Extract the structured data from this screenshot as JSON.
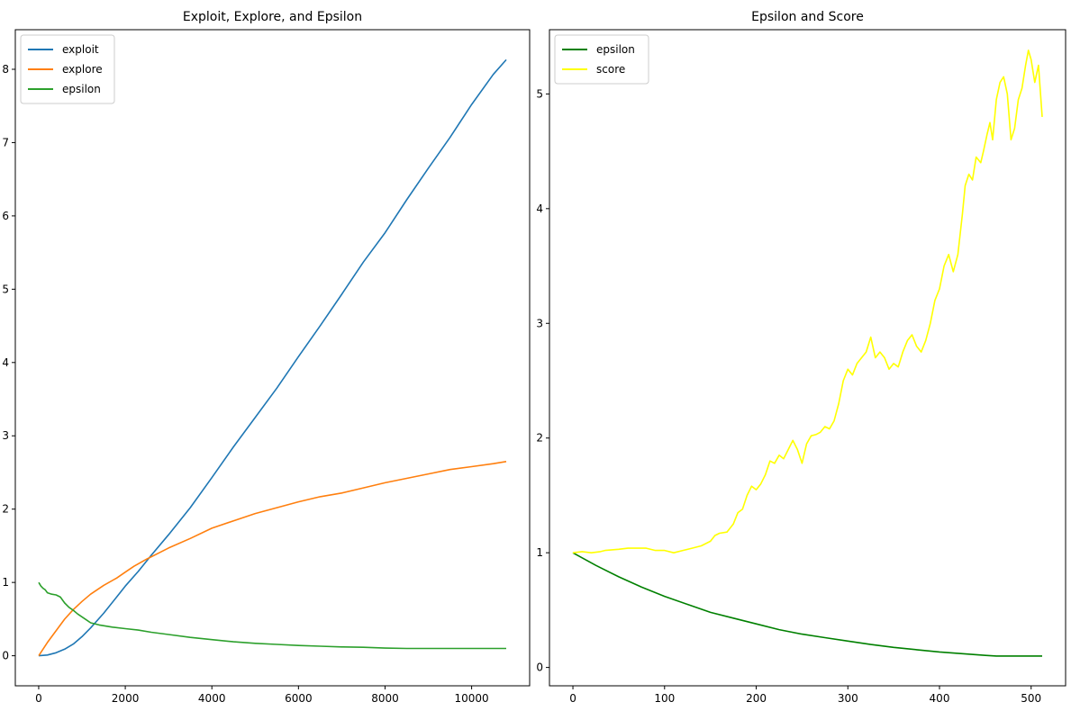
{
  "chart_data": [
    {
      "type": "line",
      "title": "Exploit, Explore, and Epsilon",
      "xlabel": "",
      "ylabel": "",
      "xlim": [
        -540,
        11340
      ],
      "ylim": [
        -0.41,
        8.54
      ],
      "xticks": [
        0,
        2000,
        4000,
        6000,
        8000,
        10000
      ],
      "yticks": [
        0,
        1,
        2,
        3,
        4,
        5,
        6,
        7,
        8
      ],
      "grid": false,
      "legend": "top-left",
      "series": [
        {
          "name": "exploit",
          "color": "#1f77b4",
          "points": [
            [
              0,
              0
            ],
            [
              200,
              0.01
            ],
            [
              400,
              0.04
            ],
            [
              600,
              0.09
            ],
            [
              800,
              0.16
            ],
            [
              1000,
              0.26
            ],
            [
              1200,
              0.38
            ],
            [
              1500,
              0.58
            ],
            [
              1800,
              0.8
            ],
            [
              2000,
              0.95
            ],
            [
              2300,
              1.15
            ],
            [
              2600,
              1.37
            ],
            [
              3000,
              1.65
            ],
            [
              3500,
              2.02
            ],
            [
              4000,
              2.43
            ],
            [
              4500,
              2.85
            ],
            [
              5000,
              3.25
            ],
            [
              5500,
              3.65
            ],
            [
              6000,
              4.08
            ],
            [
              6500,
              4.5
            ],
            [
              7000,
              4.93
            ],
            [
              7500,
              5.37
            ],
            [
              8000,
              5.77
            ],
            [
              8500,
              6.22
            ],
            [
              9000,
              6.65
            ],
            [
              9500,
              7.07
            ],
            [
              10000,
              7.52
            ],
            [
              10500,
              7.93
            ],
            [
              10800,
              8.13
            ]
          ]
        },
        {
          "name": "explore",
          "color": "#ff7f0e",
          "points": [
            [
              0,
              0
            ],
            [
              200,
              0.18
            ],
            [
              400,
              0.34
            ],
            [
              600,
              0.5
            ],
            [
              800,
              0.63
            ],
            [
              1000,
              0.74
            ],
            [
              1200,
              0.84
            ],
            [
              1500,
              0.96
            ],
            [
              1800,
              1.06
            ],
            [
              2000,
              1.14
            ],
            [
              2200,
              1.22
            ],
            [
              2500,
              1.32
            ],
            [
              2800,
              1.41
            ],
            [
              3000,
              1.47
            ],
            [
              3500,
              1.6
            ],
            [
              4000,
              1.74
            ],
            [
              4500,
              1.84
            ],
            [
              5000,
              1.94
            ],
            [
              5500,
              2.02
            ],
            [
              6000,
              2.1
            ],
            [
              6500,
              2.17
            ],
            [
              7000,
              2.22
            ],
            [
              7500,
              2.29
            ],
            [
              8000,
              2.36
            ],
            [
              8500,
              2.42
            ],
            [
              9000,
              2.48
            ],
            [
              9500,
              2.54
            ],
            [
              10000,
              2.58
            ],
            [
              10500,
              2.62
            ],
            [
              10800,
              2.65
            ]
          ]
        },
        {
          "name": "epsilon",
          "color": "#2ca02c",
          "points": [
            [
              0,
              1.0
            ],
            [
              50,
              0.95
            ],
            [
              100,
              0.92
            ],
            [
              150,
              0.9
            ],
            [
              200,
              0.86
            ],
            [
              300,
              0.84
            ],
            [
              400,
              0.83
            ],
            [
              500,
              0.8
            ],
            [
              600,
              0.72
            ],
            [
              700,
              0.66
            ],
            [
              800,
              0.62
            ],
            [
              900,
              0.57
            ],
            [
              1000,
              0.53
            ],
            [
              1100,
              0.49
            ],
            [
              1200,
              0.45
            ],
            [
              1400,
              0.42
            ],
            [
              1700,
              0.39
            ],
            [
              2000,
              0.37
            ],
            [
              2300,
              0.35
            ],
            [
              2600,
              0.32
            ],
            [
              3000,
              0.29
            ],
            [
              3500,
              0.25
            ],
            [
              4000,
              0.22
            ],
            [
              4500,
              0.19
            ],
            [
              5000,
              0.17
            ],
            [
              5500,
              0.155
            ],
            [
              6000,
              0.14
            ],
            [
              6500,
              0.13
            ],
            [
              7000,
              0.12
            ],
            [
              7500,
              0.115
            ],
            [
              8000,
              0.105
            ],
            [
              8500,
              0.1
            ],
            [
              9000,
              0.1
            ],
            [
              9500,
              0.1
            ],
            [
              10000,
              0.1
            ],
            [
              10800,
              0.1
            ]
          ]
        }
      ]
    },
    {
      "type": "line",
      "title": "Epsilon and Score",
      "xlabel": "",
      "ylabel": "",
      "xlim": [
        -25.6,
        537.6
      ],
      "ylim": [
        -0.16,
        5.56
      ],
      "xticks": [
        0,
        100,
        200,
        300,
        400,
        500
      ],
      "yticks": [
        0,
        1,
        2,
        3,
        4,
        5
      ],
      "grid": false,
      "legend": "top-left",
      "series": [
        {
          "name": "epsilon",
          "color": "#008000",
          "points": [
            [
              0,
              1.0
            ],
            [
              25,
              0.89
            ],
            [
              50,
              0.79
            ],
            [
              75,
              0.7
            ],
            [
              100,
              0.62
            ],
            [
              125,
              0.55
            ],
            [
              150,
              0.48
            ],
            [
              175,
              0.43
            ],
            [
              200,
              0.38
            ],
            [
              225,
              0.33
            ],
            [
              250,
              0.29
            ],
            [
              275,
              0.26
            ],
            [
              300,
              0.23
            ],
            [
              325,
              0.2
            ],
            [
              350,
              0.175
            ],
            [
              375,
              0.155
            ],
            [
              400,
              0.135
            ],
            [
              425,
              0.12
            ],
            [
              450,
              0.105
            ],
            [
              462,
              0.1
            ],
            [
              480,
              0.1
            ],
            [
              500,
              0.1
            ],
            [
              512,
              0.1
            ]
          ]
        },
        {
          "name": "score",
          "color": "#ffff00",
          "points": [
            [
              0,
              1.0
            ],
            [
              10,
              1.01
            ],
            [
              20,
              1.0
            ],
            [
              30,
              1.01
            ],
            [
              35,
              1.02
            ],
            [
              50,
              1.03
            ],
            [
              60,
              1.04
            ],
            [
              80,
              1.04
            ],
            [
              90,
              1.02
            ],
            [
              100,
              1.02
            ],
            [
              110,
              1.0
            ],
            [
              120,
              1.02
            ],
            [
              130,
              1.04
            ],
            [
              140,
              1.06
            ],
            [
              150,
              1.1
            ],
            [
              155,
              1.15
            ],
            [
              160,
              1.17
            ],
            [
              168,
              1.18
            ],
            [
              175,
              1.25
            ],
            [
              180,
              1.35
            ],
            [
              185,
              1.38
            ],
            [
              190,
              1.5
            ],
            [
              195,
              1.58
            ],
            [
              200,
              1.55
            ],
            [
              205,
              1.6
            ],
            [
              210,
              1.68
            ],
            [
              215,
              1.8
            ],
            [
              220,
              1.78
            ],
            [
              225,
              1.85
            ],
            [
              230,
              1.82
            ],
            [
              235,
              1.9
            ],
            [
              240,
              1.98
            ],
            [
              245,
              1.9
            ],
            [
              250,
              1.78
            ],
            [
              255,
              1.95
            ],
            [
              260,
              2.02
            ],
            [
              265,
              2.03
            ],
            [
              270,
              2.05
            ],
            [
              275,
              2.1
            ],
            [
              280,
              2.08
            ],
            [
              285,
              2.15
            ],
            [
              290,
              2.3
            ],
            [
              295,
              2.5
            ],
            [
              300,
              2.6
            ],
            [
              305,
              2.55
            ],
            [
              310,
              2.65
            ],
            [
              315,
              2.7
            ],
            [
              320,
              2.75
            ],
            [
              325,
              2.88
            ],
            [
              330,
              2.7
            ],
            [
              335,
              2.75
            ],
            [
              340,
              2.7
            ],
            [
              345,
              2.6
            ],
            [
              350,
              2.65
            ],
            [
              355,
              2.62
            ],
            [
              360,
              2.75
            ],
            [
              365,
              2.85
            ],
            [
              370,
              2.9
            ],
            [
              375,
              2.8
            ],
            [
              380,
              2.75
            ],
            [
              385,
              2.85
            ],
            [
              390,
              3.0
            ],
            [
              395,
              3.2
            ],
            [
              400,
              3.3
            ],
            [
              405,
              3.5
            ],
            [
              410,
              3.6
            ],
            [
              415,
              3.45
            ],
            [
              420,
              3.6
            ],
            [
              425,
              3.95
            ],
            [
              428,
              4.2
            ],
            [
              432,
              4.3
            ],
            [
              436,
              4.25
            ],
            [
              440,
              4.45
            ],
            [
              445,
              4.4
            ],
            [
              448,
              4.5
            ],
            [
              452,
              4.65
            ],
            [
              455,
              4.75
            ],
            [
              458,
              4.6
            ],
            [
              462,
              4.95
            ],
            [
              466,
              5.1
            ],
            [
              470,
              5.15
            ],
            [
              474,
              5.0
            ],
            [
              478,
              4.6
            ],
            [
              482,
              4.7
            ],
            [
              486,
              4.95
            ],
            [
              490,
              5.05
            ],
            [
              494,
              5.25
            ],
            [
              497,
              5.38
            ],
            [
              500,
              5.3
            ],
            [
              504,
              5.1
            ],
            [
              508,
              5.25
            ],
            [
              512,
              4.8
            ]
          ]
        }
      ]
    }
  ]
}
